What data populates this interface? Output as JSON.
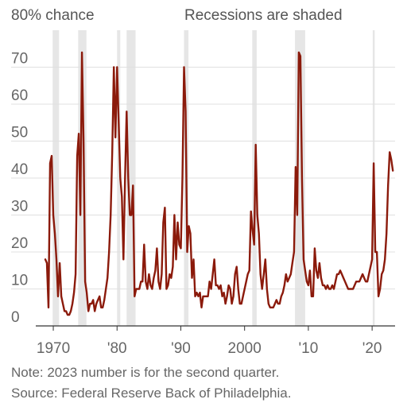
{
  "top_left_label": "80% chance",
  "shading_note": "Recessions are shaded",
  "note": "Note: 2023 number is for the second quarter.",
  "source": "Source: Federal Reserve Back of Philadelphia.",
  "colors": {
    "line": "#8b1a0b",
    "recession": "#e6e6e6",
    "grid": "#e0e0e0",
    "axis": "#333333",
    "text": "#666666"
  },
  "chart_data": {
    "type": "line",
    "title": "",
    "xlabel": "",
    "ylabel": "",
    "x_unit": "year (quarterly)",
    "y_unit": "percent chance",
    "xlim": [
      1968.5,
      2023.6
    ],
    "ylim": [
      0,
      80
    ],
    "yticks": [
      0,
      10,
      20,
      30,
      40,
      50,
      60,
      70
    ],
    "ytick_labels": [
      "0",
      "10",
      "20",
      "30",
      "40",
      "50",
      "60",
      "70"
    ],
    "y_top_label": "80% chance",
    "xticks": [
      1970,
      1980,
      1990,
      2000,
      2010,
      2020
    ],
    "xtick_labels": [
      "1970",
      "'80",
      "'90",
      "2000",
      "'10",
      "'20"
    ],
    "grid": true,
    "recessions": [
      [
        1969.9,
        1970.9
      ],
      [
        1973.9,
        1975.2
      ],
      [
        1980.0,
        1980.5
      ],
      [
        1981.5,
        1982.9
      ],
      [
        1990.5,
        1991.2
      ],
      [
        2001.2,
        2001.9
      ],
      [
        2007.9,
        2009.5
      ],
      [
        2020.1,
        2020.4
      ]
    ],
    "series": [
      {
        "points": [
          [
            1968.75,
            18
          ],
          [
            1969.0,
            17
          ],
          [
            1969.25,
            5
          ],
          [
            1969.5,
            44
          ],
          [
            1969.75,
            46
          ],
          [
            1970.0,
            30
          ],
          [
            1970.25,
            25
          ],
          [
            1970.5,
            18
          ],
          [
            1970.75,
            8
          ],
          [
            1971.0,
            17
          ],
          [
            1971.25,
            8
          ],
          [
            1971.5,
            6
          ],
          [
            1971.75,
            4
          ],
          [
            1972.0,
            4
          ],
          [
            1972.25,
            3
          ],
          [
            1972.5,
            3
          ],
          [
            1972.75,
            4
          ],
          [
            1973.0,
            6
          ],
          [
            1973.25,
            9
          ],
          [
            1973.5,
            14
          ],
          [
            1973.75,
            46
          ],
          [
            1974.0,
            52
          ],
          [
            1974.25,
            30
          ],
          [
            1974.5,
            74
          ],
          [
            1974.75,
            50
          ],
          [
            1975.0,
            12
          ],
          [
            1975.25,
            9
          ],
          [
            1975.5,
            4
          ],
          [
            1975.75,
            6
          ],
          [
            1976.0,
            6
          ],
          [
            1976.25,
            7
          ],
          [
            1976.5,
            4
          ],
          [
            1976.75,
            6
          ],
          [
            1977.0,
            7
          ],
          [
            1977.25,
            8
          ],
          [
            1977.5,
            5
          ],
          [
            1977.75,
            5
          ],
          [
            1978.0,
            7
          ],
          [
            1978.25,
            10
          ],
          [
            1978.5,
            13
          ],
          [
            1978.75,
            20
          ],
          [
            1979.0,
            30
          ],
          [
            1979.25,
            47
          ],
          [
            1979.5,
            70
          ],
          [
            1979.75,
            51
          ],
          [
            1980.0,
            70
          ],
          [
            1980.25,
            55
          ],
          [
            1980.5,
            40
          ],
          [
            1980.75,
            35
          ],
          [
            1981.0,
            18
          ],
          [
            1981.25,
            40
          ],
          [
            1981.5,
            58
          ],
          [
            1981.75,
            40
          ],
          [
            1982.0,
            30
          ],
          [
            1982.25,
            30
          ],
          [
            1982.5,
            38
          ],
          [
            1982.75,
            8
          ],
          [
            1983.0,
            10
          ],
          [
            1983.25,
            10
          ],
          [
            1983.5,
            10
          ],
          [
            1983.75,
            12
          ],
          [
            1984.0,
            12
          ],
          [
            1984.25,
            22
          ],
          [
            1984.5,
            12
          ],
          [
            1984.75,
            10
          ],
          [
            1985.0,
            14
          ],
          [
            1985.25,
            11
          ],
          [
            1985.5,
            10
          ],
          [
            1985.75,
            13
          ],
          [
            1986.0,
            15
          ],
          [
            1986.25,
            21
          ],
          [
            1986.5,
            12
          ],
          [
            1986.75,
            10
          ],
          [
            1987.0,
            14
          ],
          [
            1987.25,
            28
          ],
          [
            1987.5,
            32
          ],
          [
            1987.75,
            10
          ],
          [
            1988.0,
            11
          ],
          [
            1988.25,
            14
          ],
          [
            1988.5,
            13
          ],
          [
            1988.75,
            16
          ],
          [
            1989.0,
            30
          ],
          [
            1989.25,
            18
          ],
          [
            1989.5,
            28
          ],
          [
            1989.75,
            22
          ],
          [
            1990.0,
            21
          ],
          [
            1990.25,
            40
          ],
          [
            1990.5,
            70
          ],
          [
            1990.75,
            58
          ],
          [
            1991.0,
            20
          ],
          [
            1991.25,
            27
          ],
          [
            1991.5,
            25
          ],
          [
            1991.75,
            13
          ],
          [
            1992.0,
            18
          ],
          [
            1992.25,
            8
          ],
          [
            1992.5,
            9
          ],
          [
            1992.75,
            8
          ],
          [
            1993.0,
            9
          ],
          [
            1993.25,
            5
          ],
          [
            1993.5,
            8
          ],
          [
            1993.75,
            8
          ],
          [
            1994.0,
            8
          ],
          [
            1994.25,
            8
          ],
          [
            1994.5,
            12
          ],
          [
            1994.75,
            10
          ],
          [
            1995.0,
            14
          ],
          [
            1995.25,
            18
          ],
          [
            1995.5,
            11
          ],
          [
            1995.75,
            11
          ],
          [
            1996.0,
            10
          ],
          [
            1996.25,
            11
          ],
          [
            1996.5,
            8
          ],
          [
            1996.75,
            9
          ],
          [
            1997.0,
            6
          ],
          [
            1997.25,
            8
          ],
          [
            1997.5,
            11
          ],
          [
            1997.75,
            10
          ],
          [
            1998.0,
            6
          ],
          [
            1998.25,
            8
          ],
          [
            1998.5,
            14
          ],
          [
            1998.75,
            16
          ],
          [
            1999.0,
            10
          ],
          [
            1999.25,
            6
          ],
          [
            1999.5,
            6
          ],
          [
            1999.75,
            8
          ],
          [
            2000.0,
            10
          ],
          [
            2000.25,
            12
          ],
          [
            2000.5,
            14
          ],
          [
            2000.75,
            15
          ],
          [
            2001.0,
            31
          ],
          [
            2001.25,
            26
          ],
          [
            2001.5,
            22
          ],
          [
            2001.75,
            49
          ],
          [
            2002.0,
            30
          ],
          [
            2002.25,
            25
          ],
          [
            2002.5,
            14
          ],
          [
            2002.75,
            10
          ],
          [
            2003.0,
            14
          ],
          [
            2003.25,
            18
          ],
          [
            2003.5,
            10
          ],
          [
            2003.75,
            6
          ],
          [
            2004.0,
            5
          ],
          [
            2004.25,
            5
          ],
          [
            2004.5,
            5
          ],
          [
            2004.75,
            6
          ],
          [
            2005.0,
            7
          ],
          [
            2005.25,
            6
          ],
          [
            2005.5,
            6
          ],
          [
            2005.75,
            8
          ],
          [
            2006.0,
            9
          ],
          [
            2006.25,
            11
          ],
          [
            2006.5,
            14
          ],
          [
            2006.75,
            12
          ],
          [
            2007.0,
            13
          ],
          [
            2007.25,
            14
          ],
          [
            2007.5,
            17
          ],
          [
            2007.75,
            20
          ],
          [
            2008.0,
            43
          ],
          [
            2008.25,
            30
          ],
          [
            2008.5,
            74
          ],
          [
            2008.75,
            73
          ],
          [
            2009.0,
            40
          ],
          [
            2009.25,
            18
          ],
          [
            2009.5,
            15
          ],
          [
            2009.75,
            12
          ],
          [
            2010.0,
            11
          ],
          [
            2010.25,
            15
          ],
          [
            2010.5,
            8
          ],
          [
            2010.75,
            8
          ],
          [
            2011.0,
            21
          ],
          [
            2011.25,
            15
          ],
          [
            2011.5,
            13
          ],
          [
            2011.75,
            17
          ],
          [
            2012.0,
            13
          ],
          [
            2012.25,
            11
          ],
          [
            2012.5,
            11
          ],
          [
            2012.75,
            10
          ],
          [
            2013.0,
            11
          ],
          [
            2013.25,
            10
          ],
          [
            2013.5,
            10
          ],
          [
            2013.75,
            11
          ],
          [
            2014.0,
            10
          ],
          [
            2014.25,
            12
          ],
          [
            2014.5,
            14
          ],
          [
            2014.75,
            14
          ],
          [
            2015.0,
            15
          ],
          [
            2015.25,
            14
          ],
          [
            2015.5,
            13
          ],
          [
            2015.75,
            12
          ],
          [
            2016.0,
            11
          ],
          [
            2016.25,
            10
          ],
          [
            2016.5,
            10
          ],
          [
            2016.75,
            10
          ],
          [
            2017.0,
            10
          ],
          [
            2017.25,
            11
          ],
          [
            2017.5,
            12
          ],
          [
            2017.75,
            12
          ],
          [
            2018.0,
            12
          ],
          [
            2018.25,
            13
          ],
          [
            2018.5,
            14
          ],
          [
            2018.75,
            13
          ],
          [
            2019.0,
            12
          ],
          [
            2019.25,
            12
          ],
          [
            2019.5,
            14
          ],
          [
            2019.75,
            16
          ],
          [
            2020.0,
            18
          ],
          [
            2020.25,
            44
          ],
          [
            2020.5,
            20
          ],
          [
            2020.75,
            20
          ],
          [
            2021.0,
            8
          ],
          [
            2021.25,
            10
          ],
          [
            2021.5,
            14
          ],
          [
            2021.75,
            15
          ],
          [
            2022.0,
            18
          ],
          [
            2022.25,
            25
          ],
          [
            2022.5,
            38
          ],
          [
            2022.75,
            47
          ],
          [
            2023.0,
            45
          ],
          [
            2023.25,
            42
          ]
        ]
      }
    ]
  }
}
